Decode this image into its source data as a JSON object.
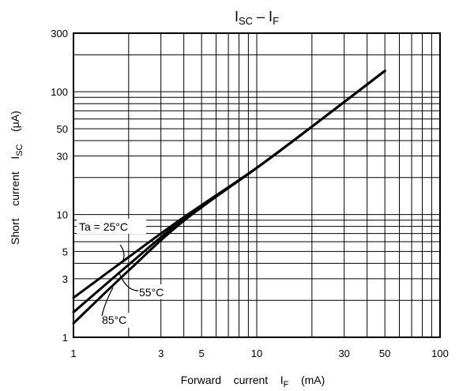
{
  "chart_data": {
    "type": "line",
    "title": {
      "main": "I",
      "sub1": "SC",
      "sep": " – I",
      "sub2": "F"
    },
    "xlabel": {
      "main": "Forward    current    I",
      "sub": "F",
      "unit": "    (mA)"
    },
    "ylabel": {
      "main": "Short    current    I",
      "sub": "SC",
      "unit": "    (μA)"
    },
    "x_scale": "log",
    "y_scale": "log",
    "xlim": [
      1,
      100
    ],
    "ylim": [
      1,
      300
    ],
    "x_ticks": [
      1,
      3,
      5,
      10,
      30,
      50,
      100
    ],
    "x_tick_labels": [
      "1",
      "3",
      "5",
      "10",
      "30",
      "50",
      "100"
    ],
    "y_ticks": [
      1,
      3,
      5,
      10,
      30,
      50,
      100,
      300
    ],
    "y_tick_labels": [
      "1",
      "3",
      "5",
      "10",
      "30",
      "50",
      "100",
      "300"
    ],
    "grid": true,
    "series": [
      {
        "name": "Ta = 25°C",
        "x": [
          1,
          2,
          4,
          10,
          20,
          50
        ],
        "y": [
          2.1,
          4.5,
          9.5,
          24,
          52,
          148
        ]
      },
      {
        "name": "55°C",
        "x": [
          1,
          2,
          4,
          10,
          20,
          50
        ],
        "y": [
          1.6,
          3.9,
          9.2,
          24,
          52,
          148
        ]
      },
      {
        "name": "85°C",
        "x": [
          1,
          2,
          4,
          10,
          20,
          50
        ],
        "y": [
          1.3,
          3.5,
          8.9,
          24,
          52,
          148
        ]
      }
    ],
    "annotations": [
      "Ta = 25°C",
      "55°C",
      "85°C"
    ]
  }
}
